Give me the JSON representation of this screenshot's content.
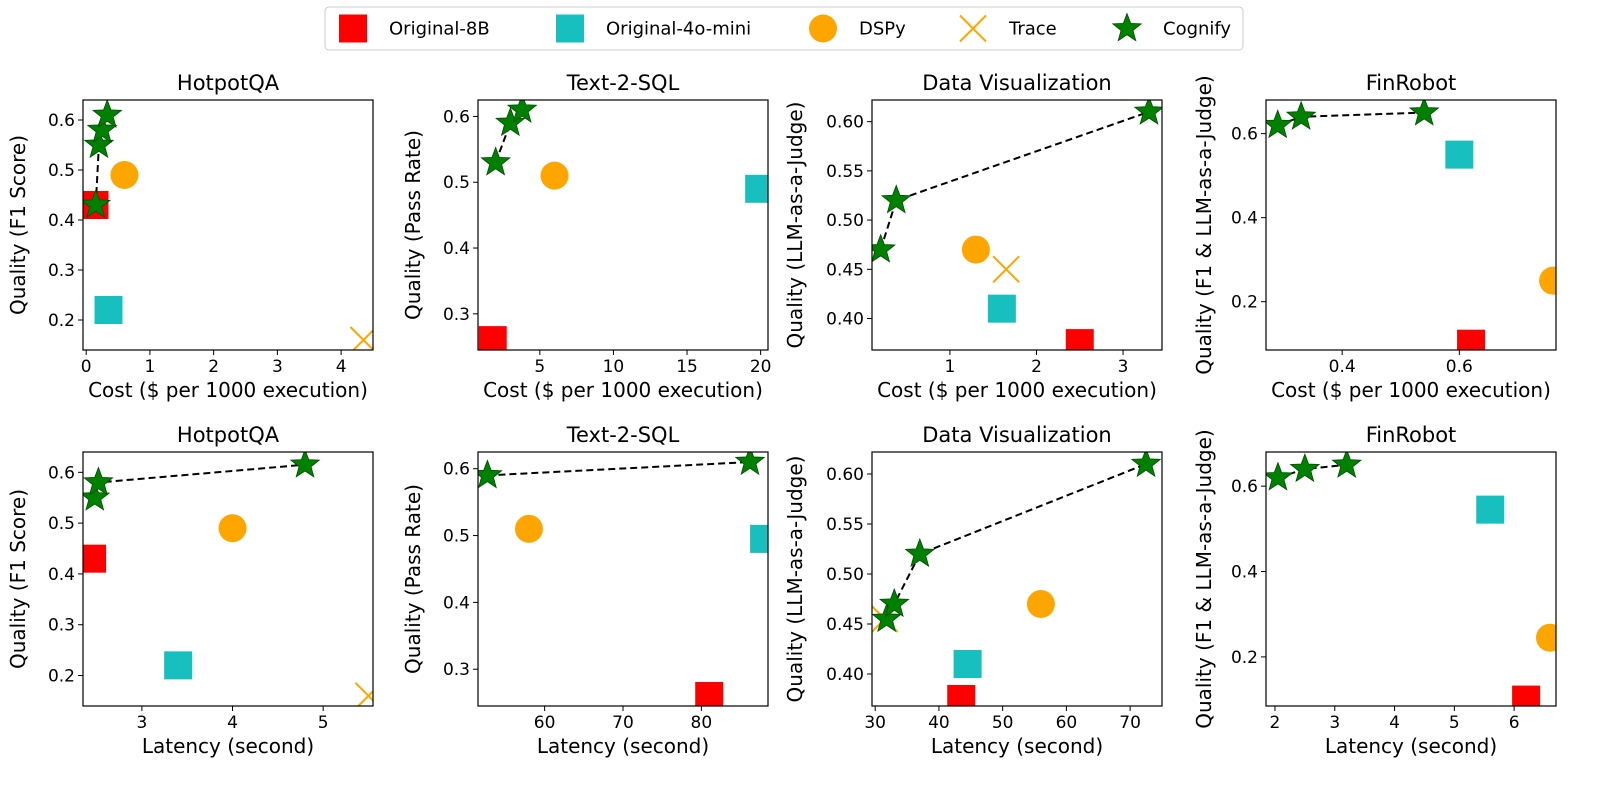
{
  "legend": [
    {
      "name": "Original-8B",
      "marker": "square",
      "color": "#ff0000"
    },
    {
      "name": "Original-4o-mini",
      "marker": "square",
      "color": "#17bfbf"
    },
    {
      "name": "DSPy",
      "marker": "circle",
      "color": "#ffa500"
    },
    {
      "name": "Trace",
      "marker": "x",
      "color": "#ffa500"
    },
    {
      "name": "Cognify",
      "marker": "star",
      "color": "#008000"
    }
  ],
  "chart_data": [
    {
      "type": "scatter",
      "title": "HotpotQA",
      "xlabel": "Cost ($ per 1000 execution)",
      "ylabel": "Quality (F1 Score)",
      "xlim": [
        -0.05,
        4.5
      ],
      "ylim": [
        0.14,
        0.64
      ],
      "xticks": [
        0,
        1,
        2,
        3,
        4
      ],
      "xtick_labels": [
        "0",
        "1",
        "2",
        "3",
        "4"
      ],
      "yticks": [
        0.2,
        0.3,
        0.4,
        0.5,
        0.6
      ],
      "ytick_labels": [
        "0.2",
        "0.3",
        "0.4",
        "0.5",
        "0.6"
      ],
      "points": [
        {
          "series": "Original-8B",
          "x": 0.13,
          "y": 0.43
        },
        {
          "series": "Original-4o-mini",
          "x": 0.35,
          "y": 0.22
        },
        {
          "series": "DSPy",
          "x": 0.6,
          "y": 0.49
        },
        {
          "series": "Trace",
          "x": 4.35,
          "y": 0.16
        }
      ],
      "cognify": {
        "x": [
          0.15,
          0.2,
          0.25,
          0.33
        ],
        "y": [
          0.43,
          0.55,
          0.58,
          0.61
        ]
      }
    },
    {
      "type": "scatter",
      "title": "Text-2-SQL",
      "xlabel": "Cost ($ per 1000 execution)",
      "ylabel": "Quality (Pass Rate)",
      "xlim": [
        0.8,
        20.5
      ],
      "ylim": [
        0.245,
        0.625
      ],
      "xticks": [
        5,
        10,
        15,
        20
      ],
      "xtick_labels": [
        "5",
        "10",
        "15",
        "20"
      ],
      "yticks": [
        0.3,
        0.4,
        0.5,
        0.6
      ],
      "ytick_labels": [
        "0.3",
        "0.4",
        "0.5",
        "0.6"
      ],
      "points": [
        {
          "series": "Original-8B",
          "x": 1.8,
          "y": 0.26
        },
        {
          "series": "Original-4o-mini",
          "x": 19.9,
          "y": 0.49
        },
        {
          "series": "DSPy",
          "x": 6.0,
          "y": 0.51
        }
      ],
      "cognify": {
        "x": [
          2.0,
          3.0,
          3.8
        ],
        "y": [
          0.53,
          0.59,
          0.61
        ]
      }
    },
    {
      "type": "scatter",
      "title": "Data Visualization",
      "xlabel": "Cost ($ per 1000 execution)",
      "ylabel": "Quality (LLM-as-a-Judge)",
      "xlim": [
        0.1,
        3.45
      ],
      "ylim": [
        0.368,
        0.622
      ],
      "xticks": [
        1,
        2,
        3
      ],
      "xtick_labels": [
        "1",
        "2",
        "3"
      ],
      "yticks": [
        0.4,
        0.45,
        0.5,
        0.55,
        0.6
      ],
      "ytick_labels": [
        "0.40",
        "0.45",
        "0.50",
        "0.55",
        "0.60"
      ],
      "points": [
        {
          "series": "Original-8B",
          "x": 2.5,
          "y": 0.375
        },
        {
          "series": "Original-4o-mini",
          "x": 1.6,
          "y": 0.41
        },
        {
          "series": "DSPy",
          "x": 1.3,
          "y": 0.47
        },
        {
          "series": "Trace",
          "x": 1.65,
          "y": 0.45
        }
      ],
      "cognify": {
        "x": [
          0.2,
          0.38,
          3.3
        ],
        "y": [
          0.47,
          0.52,
          0.61
        ]
      }
    },
    {
      "type": "scatter",
      "title": "FinRobot",
      "xlabel": "Cost ($ per 1000 execution)",
      "ylabel": "Quality (F1 & LLM-as-a-Judge)",
      "xlim": [
        0.27,
        0.765
      ],
      "ylim": [
        0.085,
        0.68
      ],
      "xticks": [
        0.4,
        0.6
      ],
      "xtick_labels": [
        "0.4",
        "0.6"
      ],
      "yticks": [
        0.2,
        0.4,
        0.6
      ],
      "ytick_labels": [
        "0.2",
        "0.4",
        "0.6"
      ],
      "points": [
        {
          "series": "Original-8B",
          "x": 0.62,
          "y": 0.1
        },
        {
          "series": "Original-4o-mini",
          "x": 0.6,
          "y": 0.55
        },
        {
          "series": "DSPy",
          "x": 0.76,
          "y": 0.25
        }
      ],
      "cognify": {
        "x": [
          0.29,
          0.33,
          0.54
        ],
        "y": [
          0.62,
          0.64,
          0.65
        ]
      }
    },
    {
      "type": "scatter",
      "title": "HotpotQA",
      "xlabel": "Latency (second)",
      "ylabel": "Quality (F1 Score)",
      "xlim": [
        2.35,
        5.55
      ],
      "ylim": [
        0.14,
        0.64
      ],
      "xticks": [
        3,
        4,
        5
      ],
      "xtick_labels": [
        "3",
        "4",
        "5"
      ],
      "yticks": [
        0.2,
        0.3,
        0.4,
        0.5,
        0.6
      ],
      "ytick_labels": [
        "0.2",
        "0.3",
        "0.4",
        "0.5",
        "0.6"
      ],
      "points": [
        {
          "series": "Original-8B",
          "x": 2.45,
          "y": 0.43
        },
        {
          "series": "Original-4o-mini",
          "x": 3.4,
          "y": 0.22
        },
        {
          "series": "DSPy",
          "x": 4.0,
          "y": 0.49
        },
        {
          "series": "Trace",
          "x": 5.5,
          "y": 0.16
        }
      ],
      "cognify": {
        "x": [
          2.48,
          2.52,
          4.8
        ],
        "y": [
          0.55,
          0.58,
          0.615
        ]
      }
    },
    {
      "type": "scatter",
      "title": "Text-2-SQL",
      "xlabel": "Latency (second)",
      "ylabel": "Quality (Pass Rate)",
      "xlim": [
        51.5,
        88.5
      ],
      "ylim": [
        0.245,
        0.625
      ],
      "xticks": [
        60,
        70,
        80
      ],
      "xtick_labels": [
        "60",
        "70",
        "80"
      ],
      "yticks": [
        0.3,
        0.4,
        0.5,
        0.6
      ],
      "ytick_labels": [
        "0.3",
        "0.4",
        "0.5",
        "0.6"
      ],
      "points": [
        {
          "series": "Original-8B",
          "x": 81,
          "y": 0.26
        },
        {
          "series": "Original-4o-mini",
          "x": 88,
          "y": 0.495
        },
        {
          "series": "DSPy",
          "x": 58,
          "y": 0.51
        }
      ],
      "cognify": {
        "x": [
          52.7,
          86.2
        ],
        "y": [
          0.59,
          0.61
        ]
      }
    },
    {
      "type": "scatter",
      "title": "Data Visualization",
      "xlabel": "Latency (second)",
      "ylabel": "Quality (LLM-as-a-Judge)",
      "xlim": [
        29.5,
        75
      ],
      "ylim": [
        0.368,
        0.622
      ],
      "xticks": [
        30,
        40,
        50,
        60,
        70
      ],
      "xtick_labels": [
        "30",
        "40",
        "50",
        "60",
        "70"
      ],
      "yticks": [
        0.4,
        0.45,
        0.5,
        0.55,
        0.6
      ],
      "ytick_labels": [
        "0.40",
        "0.45",
        "0.50",
        "0.55",
        "0.60"
      ],
      "points": [
        {
          "series": "Original-8B",
          "x": 43.5,
          "y": 0.375
        },
        {
          "series": "Original-4o-mini",
          "x": 44.5,
          "y": 0.41
        },
        {
          "series": "DSPy",
          "x": 56,
          "y": 0.47
        },
        {
          "series": "Trace",
          "x": 31.5,
          "y": 0.455
        }
      ],
      "cognify": {
        "x": [
          31.8,
          33,
          37,
          72.5
        ],
        "y": [
          0.455,
          0.47,
          0.52,
          0.61
        ]
      }
    },
    {
      "type": "scatter",
      "title": "FinRobot",
      "xlabel": "Latency (second)",
      "ylabel": "Quality (F1 & LLM-as-a-Judge)",
      "xlim": [
        1.85,
        6.7
      ],
      "ylim": [
        0.085,
        0.68
      ],
      "xticks": [
        2,
        3,
        4,
        5,
        6
      ],
      "xtick_labels": [
        "2",
        "3",
        "4",
        "5",
        "6"
      ],
      "yticks": [
        0.2,
        0.4,
        0.6
      ],
      "ytick_labels": [
        "0.2",
        "0.4",
        "0.6"
      ],
      "points": [
        {
          "series": "Original-8B",
          "x": 6.2,
          "y": 0.1
        },
        {
          "series": "Original-4o-mini",
          "x": 5.6,
          "y": 0.545
        },
        {
          "series": "DSPy",
          "x": 6.6,
          "y": 0.245
        }
      ],
      "cognify": {
        "x": [
          2.05,
          2.5,
          3.2
        ],
        "y": [
          0.62,
          0.64,
          0.65
        ]
      }
    }
  ]
}
